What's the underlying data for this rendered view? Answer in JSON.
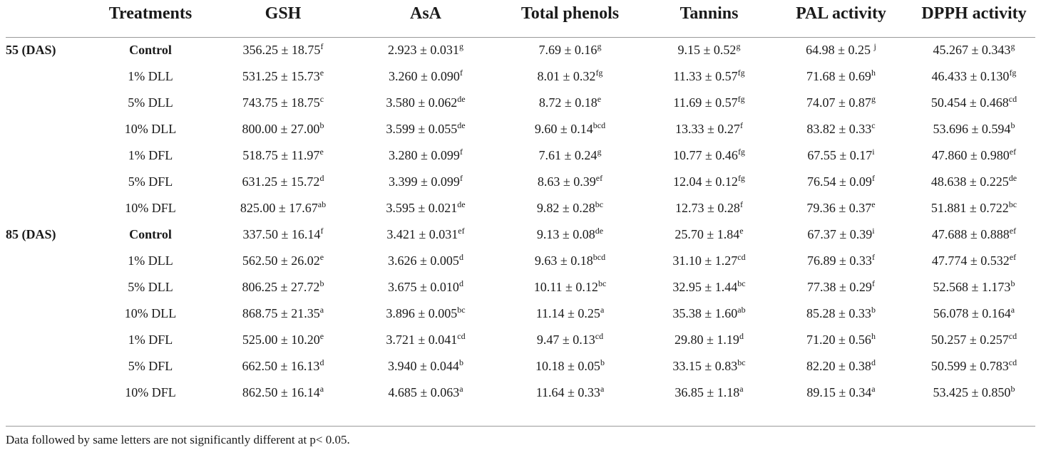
{
  "columns": [
    "",
    "Treatments",
    "GSH",
    "AsA",
    "Total phenols",
    "Tannins",
    "PAL activity",
    "DPPH activity"
  ],
  "rows": [
    {
      "group": "55 (DAS)",
      "treatment": "Control",
      "bold": true,
      "cells": [
        [
          "356.25 ± 18.75",
          "f"
        ],
        [
          "2.923 ± 0.031",
          "g"
        ],
        [
          "7.69 ± 0.16",
          "g"
        ],
        [
          "9.15 ± 0.52",
          "g"
        ],
        [
          "64.98 ± 0.25 ",
          "j"
        ],
        [
          "45.267 ± 0.343",
          "g"
        ]
      ]
    },
    {
      "group": "",
      "treatment": "1% DLL",
      "bold": false,
      "cells": [
        [
          "531.25 ± 15.73",
          "e"
        ],
        [
          "3.260 ± 0.090",
          "f"
        ],
        [
          "8.01 ± 0.32",
          "fg"
        ],
        [
          "11.33 ± 0.57",
          "fg"
        ],
        [
          "71.68 ± 0.69",
          "h"
        ],
        [
          "46.433 ± 0.130",
          "fg"
        ]
      ]
    },
    {
      "group": "",
      "treatment": "5% DLL",
      "bold": false,
      "cells": [
        [
          "743.75 ± 18.75",
          "c"
        ],
        [
          "3.580 ± 0.062",
          "de"
        ],
        [
          "8.72 ± 0.18",
          "e"
        ],
        [
          "11.69 ± 0.57",
          "fg"
        ],
        [
          "74.07 ± 0.87",
          "g"
        ],
        [
          "50.454 ± 0.468",
          "cd"
        ]
      ]
    },
    {
      "group": "",
      "treatment": "10% DLL",
      "bold": false,
      "cells": [
        [
          "800.00 ± 27.00",
          "b"
        ],
        [
          "3.599 ± 0.055",
          "de"
        ],
        [
          "9.60 ± 0.14",
          "bcd"
        ],
        [
          "13.33 ± 0.27",
          "f"
        ],
        [
          "83.82 ± 0.33",
          "c"
        ],
        [
          "53.696 ± 0.594",
          "b"
        ]
      ]
    },
    {
      "group": "",
      "treatment": "1% DFL",
      "bold": false,
      "cells": [
        [
          "518.75 ± 11.97",
          "e"
        ],
        [
          "3.280 ± 0.099",
          "f"
        ],
        [
          "7.61 ± 0.24",
          "g"
        ],
        [
          "10.77 ± 0.46",
          "fg"
        ],
        [
          "67.55 ± 0.17",
          "i"
        ],
        [
          "47.860 ± 0.980",
          "ef"
        ]
      ]
    },
    {
      "group": "",
      "treatment": "5% DFL",
      "bold": false,
      "cells": [
        [
          "631.25 ± 15.72",
          "d"
        ],
        [
          "3.399 ± 0.099",
          "f"
        ],
        [
          "8.63 ± 0.39",
          "ef"
        ],
        [
          "12.04 ± 0.12",
          "fg"
        ],
        [
          "76.54 ± 0.09",
          "f"
        ],
        [
          "48.638 ± 0.225",
          "de"
        ]
      ]
    },
    {
      "group": "",
      "treatment": "10% DFL",
      "bold": false,
      "cells": [
        [
          "825.00 ± 17.67",
          "ab"
        ],
        [
          "3.595 ± 0.021",
          "de"
        ],
        [
          "9.82 ± 0.28",
          "bc"
        ],
        [
          "12.73 ± 0.28",
          "f"
        ],
        [
          "79.36 ± 0.37",
          "e"
        ],
        [
          "51.881 ± 0.722",
          "bc"
        ]
      ]
    },
    {
      "group": "85 (DAS)",
      "treatment": "Control",
      "bold": true,
      "cells": [
        [
          "337.50 ± 16.14",
          "f"
        ],
        [
          "3.421 ± 0.031",
          "ef"
        ],
        [
          "9.13 ± 0.08",
          "de"
        ],
        [
          "25.70 ± 1.84",
          "e"
        ],
        [
          "67.37 ± 0.39",
          "i"
        ],
        [
          "47.688 ± 0.888",
          "ef"
        ]
      ]
    },
    {
      "group": "",
      "treatment": "1% DLL",
      "bold": false,
      "cells": [
        [
          "562.50 ± 26.02",
          "e"
        ],
        [
          "3.626 ± 0.005",
          "d"
        ],
        [
          "9.63 ± 0.18",
          "bcd"
        ],
        [
          "31.10 ± 1.27",
          "cd"
        ],
        [
          "76.89 ± 0.33",
          "f"
        ],
        [
          "47.774 ± 0.532",
          "ef"
        ]
      ]
    },
    {
      "group": "",
      "treatment": "5% DLL",
      "bold": false,
      "cells": [
        [
          "806.25 ± 27.72",
          "b"
        ],
        [
          "3.675 ± 0.010",
          "d"
        ],
        [
          "10.11 ± 0.12",
          "bc"
        ],
        [
          "32.95 ± 1.44",
          "bc"
        ],
        [
          "77.38 ± 0.29",
          "f"
        ],
        [
          "52.568 ± 1.173",
          "b"
        ]
      ]
    },
    {
      "group": "",
      "treatment": "10% DLL",
      "bold": false,
      "cells": [
        [
          "868.75 ± 21.35",
          "a"
        ],
        [
          "3.896 ± 0.005",
          "bc"
        ],
        [
          "11.14 ± 0.25",
          "a"
        ],
        [
          "35.38 ± 1.60",
          "ab"
        ],
        [
          "85.28 ± 0.33",
          "b"
        ],
        [
          "56.078 ± 0.164",
          "a"
        ]
      ]
    },
    {
      "group": "",
      "treatment": "1% DFL",
      "bold": false,
      "cells": [
        [
          "525.00 ± 10.20",
          "e"
        ],
        [
          "3.721 ± 0.041",
          "cd"
        ],
        [
          "9.47 ± 0.13",
          "cd"
        ],
        [
          "29.80 ± 1.19",
          "d"
        ],
        [
          "71.20 ± 0.56",
          "h"
        ],
        [
          "50.257 ± 0.257",
          "cd"
        ]
      ]
    },
    {
      "group": "",
      "treatment": "5% DFL",
      "bold": false,
      "cells": [
        [
          "662.50 ± 16.13",
          "d"
        ],
        [
          "3.940 ± 0.044",
          "b"
        ],
        [
          "10.18 ± 0.05",
          "b"
        ],
        [
          "33.15 ± 0.83",
          "bc"
        ],
        [
          "82.20 ± 0.38",
          "d"
        ],
        [
          "50.599 ± 0.783",
          "cd"
        ]
      ]
    },
    {
      "group": "",
      "treatment": "10% DFL",
      "bold": false,
      "cells": [
        [
          "862.50 ± 16.14",
          "a"
        ],
        [
          "4.685 ± 0.063",
          "a"
        ],
        [
          "11.64 ± 0.33",
          "a"
        ],
        [
          "36.85 ± 1.18",
          "a"
        ],
        [
          "89.15 ± 0.34",
          "a"
        ],
        [
          "53.425 ± 0.850",
          "b"
        ]
      ]
    }
  ],
  "footnote": "Data followed by same letters are not significantly different at p< 0.05."
}
